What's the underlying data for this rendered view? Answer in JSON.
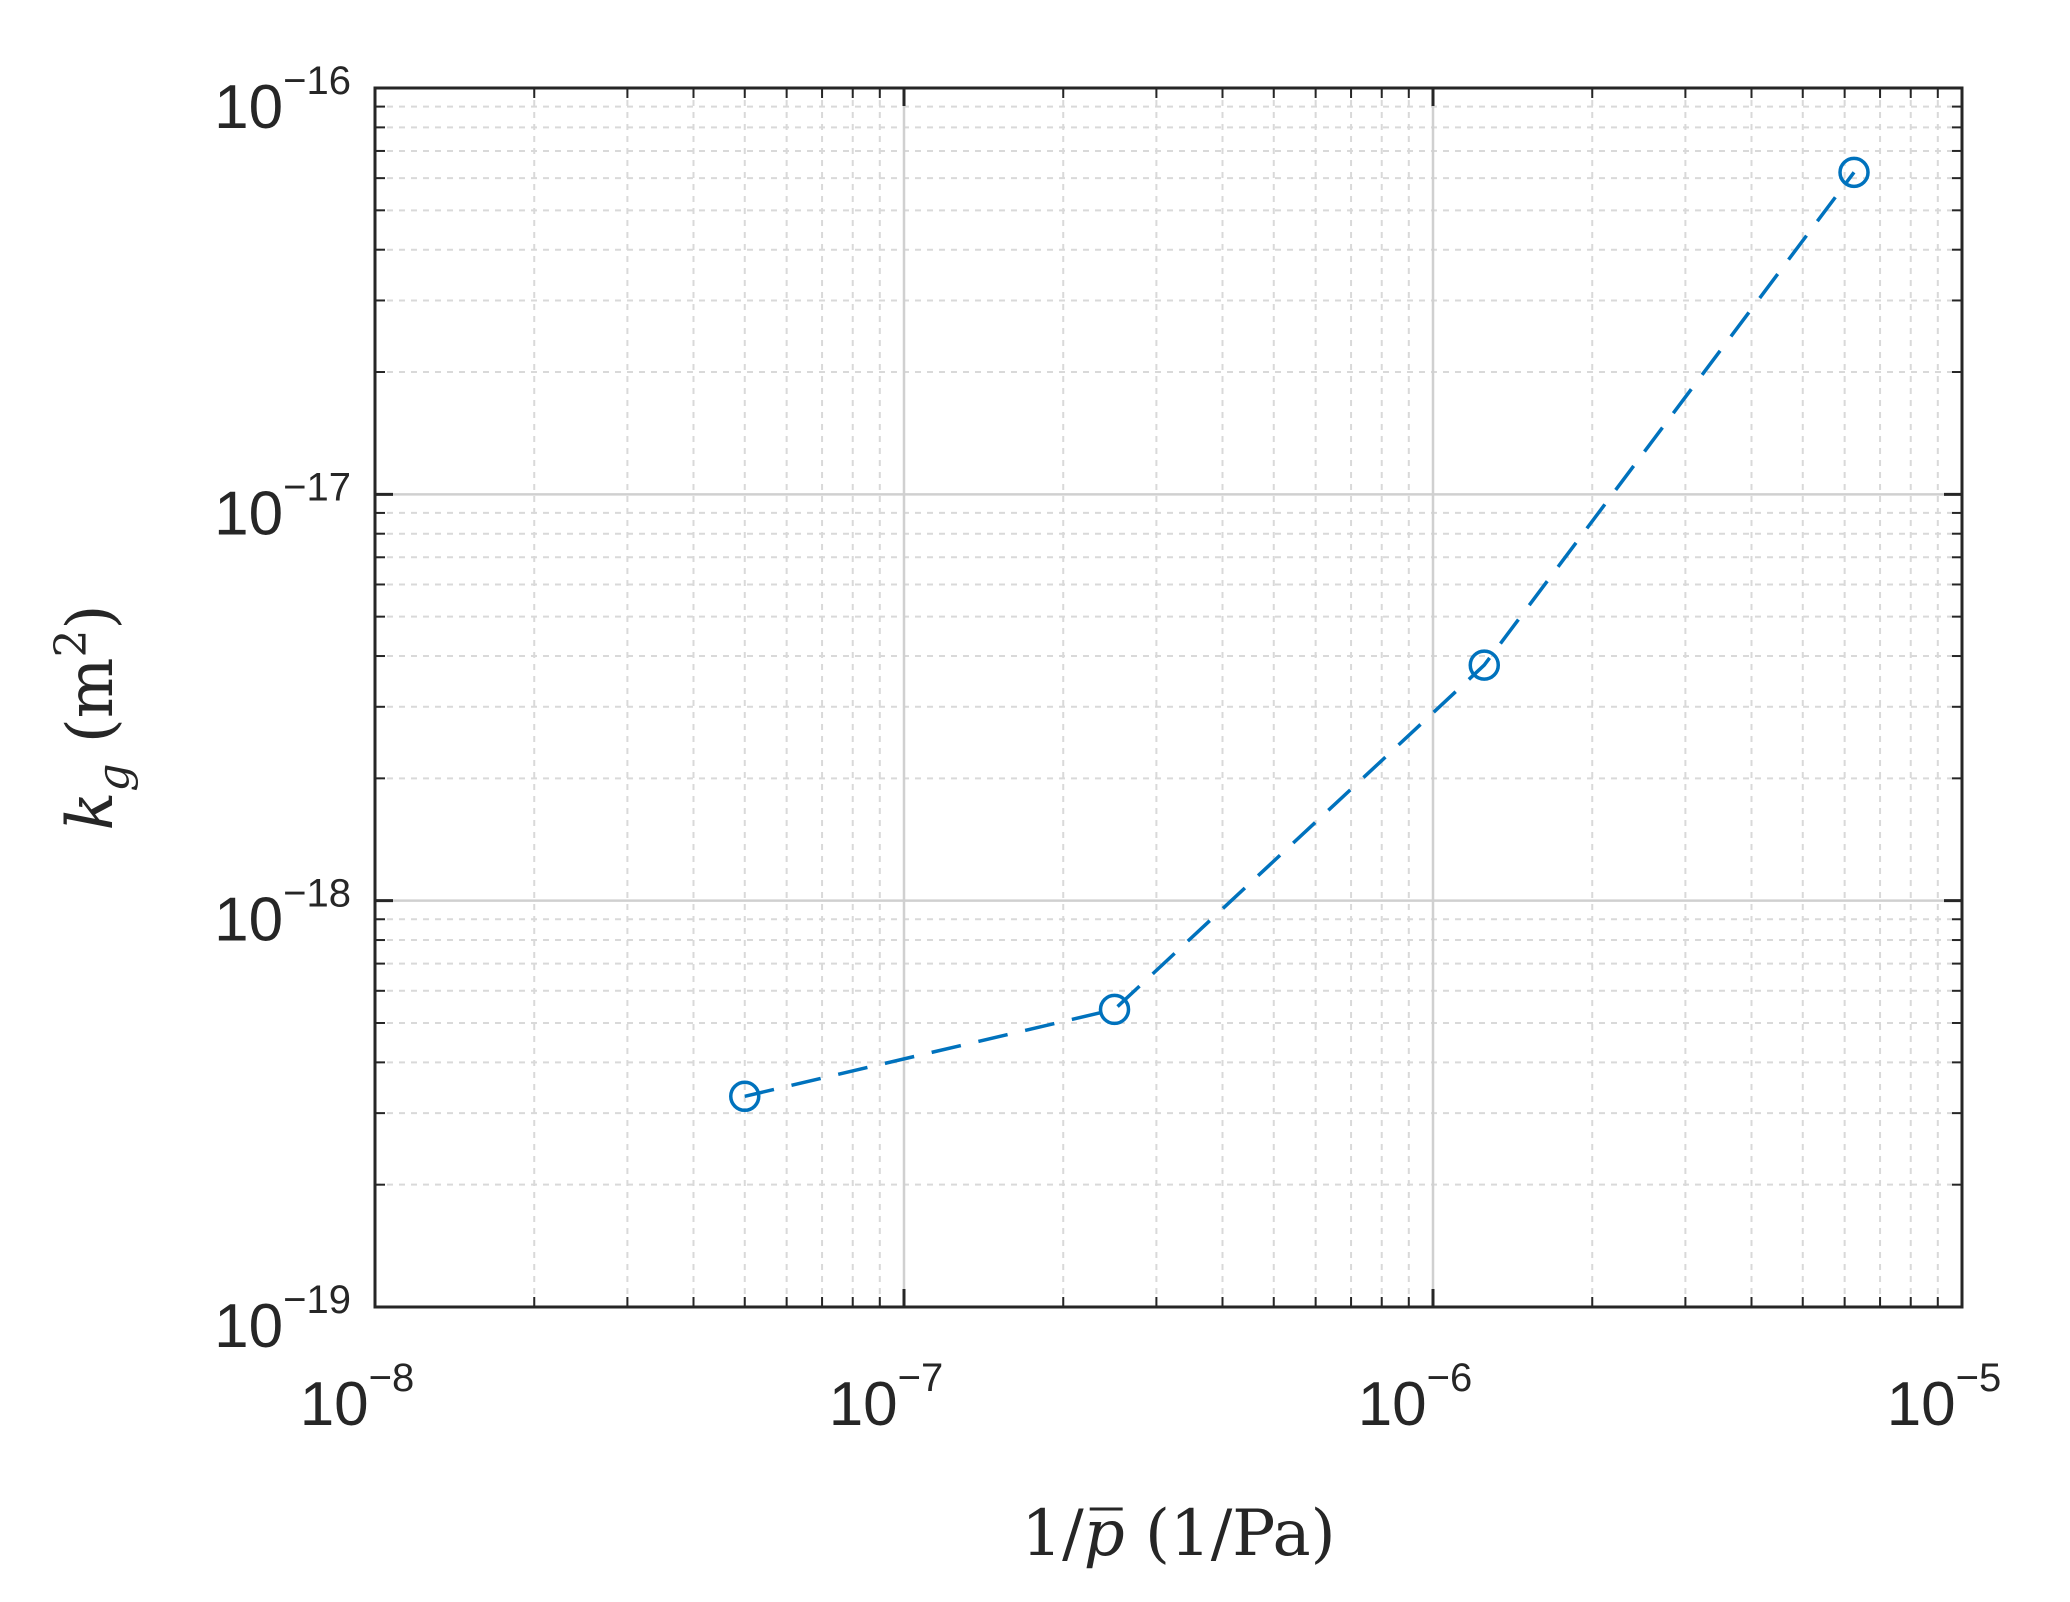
{
  "chart_data": {
    "type": "line",
    "title": "",
    "xlabel": {
      "prefix": "1/",
      "symbol": "p",
      "suffix": " (1/Pa)"
    },
    "ylabel": {
      "symbol": "k",
      "subscript": "g",
      "unit_open": " (m",
      "unit_sup": "2",
      "unit_close": ")"
    },
    "xscale": "log",
    "yscale": "log",
    "xlim": [
      1e-08,
      1e-05
    ],
    "ylim": [
      1e-19,
      1e-16
    ],
    "grid": true,
    "minor_grid": true,
    "x_ticks": [
      {
        "base": "10",
        "exp": "−8",
        "value": 1e-08
      },
      {
        "base": "10",
        "exp": "−7",
        "value": 1e-07
      },
      {
        "base": "10",
        "exp": "−6",
        "value": 1e-06
      },
      {
        "base": "10",
        "exp": "−5",
        "value": 1e-05
      }
    ],
    "y_ticks": [
      {
        "base": "10",
        "exp": "−19",
        "value": 1e-19
      },
      {
        "base": "10",
        "exp": "−18",
        "value": 1e-18
      },
      {
        "base": "10",
        "exp": "−17",
        "value": 1e-17
      },
      {
        "base": "10",
        "exp": "−16",
        "value": 1e-16
      }
    ],
    "series": [
      {
        "color": "#0072BD",
        "line_style": "dashed",
        "marker": "circle",
        "x": [
          5e-08,
          2.5e-07,
          1.25e-06,
          6.25e-06
        ],
        "y": [
          3.3e-19,
          5.4e-19,
          3.8e-18,
          6.2e-17
        ]
      }
    ]
  }
}
